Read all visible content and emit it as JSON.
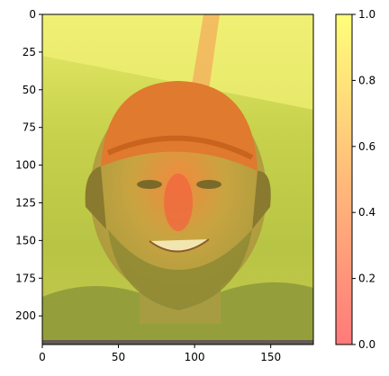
{
  "chart_data": {
    "type": "heatmap",
    "title": "",
    "xlabel": "",
    "ylabel": "",
    "image_description_visible": "photo of a smiling man with a backwards orange cap, overlaid with a semi-transparent spring colormap heatmap",
    "xlim": [
      0,
      178
    ],
    "ylim": [
      219,
      0
    ],
    "x_ticks": [
      0,
      50,
      100,
      150
    ],
    "y_ticks": [
      0,
      25,
      50,
      75,
      100,
      125,
      150,
      175,
      200
    ],
    "colorbar": {
      "colormap": "spring",
      "range": [
        0,
        1
      ],
      "ticks": [
        0.0,
        0.2,
        0.4,
        0.6,
        0.8,
        1.0
      ],
      "tick_labels": [
        "0.0",
        "0.2",
        "0.4",
        "0.6",
        "0.8",
        "1.0"
      ],
      "color_min": "#ff7a7a",
      "color_max": "#ffff7a"
    },
    "overlay_alpha": 0.5
  }
}
